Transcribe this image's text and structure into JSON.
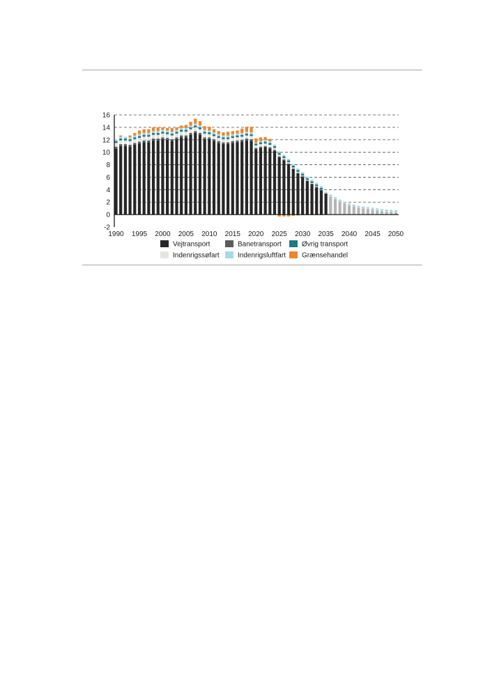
{
  "chart_data": {
    "type": "bar",
    "stacked": true,
    "title": "",
    "xlabel": "",
    "ylabel": "",
    "x": [
      1990,
      1991,
      1992,
      1993,
      1994,
      1995,
      1996,
      1997,
      1998,
      1999,
      2000,
      2001,
      2002,
      2003,
      2004,
      2005,
      2006,
      2007,
      2008,
      2009,
      2010,
      2011,
      2012,
      2013,
      2014,
      2015,
      2016,
      2017,
      2018,
      2019,
      2020,
      2021,
      2022,
      2023,
      2024,
      2025,
      2026,
      2027,
      2028,
      2029,
      2030,
      2031,
      2032,
      2033,
      2034,
      2035,
      2036,
      2037,
      2038,
      2039,
      2040,
      2041,
      2042,
      2043,
      2044,
      2045,
      2046,
      2047,
      2048,
      2049,
      2050
    ],
    "x_ticks": [
      "1990",
      "1995",
      "2000",
      "2005",
      "2010",
      "2015",
      "2020",
      "2025",
      "2030",
      "2035",
      "2040",
      "2045",
      "2050"
    ],
    "y_ticks": [
      "-2",
      "0",
      "2",
      "4",
      "6",
      "8",
      "10",
      "12",
      "14",
      "16"
    ],
    "ylim": [
      -2,
      16
    ],
    "grid": "horizontal-dashed",
    "legend_position": "bottom",
    "colors": {
      "vej": "#262626",
      "vej_projection": "#b5b5b5",
      "bane": "#5b5b5b",
      "ovrig": "#1f7a85",
      "sofart": "#e6e6e1",
      "luftfart": "#a9d8e2",
      "graense": "#f0852d"
    },
    "series": [
      {
        "key": "vej",
        "name": "Vejtransport",
        "values": [
          10.6,
          11.0,
          11.0,
          10.9,
          11.2,
          11.4,
          11.6,
          11.6,
          11.9,
          11.9,
          12.1,
          12.0,
          11.8,
          12.1,
          12.4,
          12.4,
          12.8,
          13.1,
          12.8,
          12.1,
          12.1,
          11.8,
          11.5,
          11.3,
          11.3,
          11.5,
          11.6,
          11.7,
          11.9,
          11.8,
          10.5,
          10.7,
          10.8,
          10.6,
          10.2,
          9.2,
          8.7,
          8.1,
          7.3,
          6.6,
          6.1,
          5.4,
          4.9,
          4.4,
          3.9,
          3.4,
          2.9,
          2.5,
          2.1,
          1.8,
          1.5,
          1.3,
          1.1,
          1.0,
          0.9,
          0.8,
          0.7,
          0.6,
          0.5,
          0.45,
          0.4
        ]
      },
      {
        "key": "bane",
        "name": "Banetransport",
        "values": [
          0.3,
          0.3,
          0.3,
          0.3,
          0.3,
          0.3,
          0.3,
          0.3,
          0.3,
          0.3,
          0.3,
          0.3,
          0.3,
          0.3,
          0.3,
          0.3,
          0.3,
          0.3,
          0.3,
          0.3,
          0.3,
          0.3,
          0.3,
          0.3,
          0.3,
          0.3,
          0.3,
          0.3,
          0.3,
          0.3,
          0.2,
          0.2,
          0.2,
          0.2,
          0.2,
          0.15,
          0.15,
          0.1,
          0.1,
          0.1,
          0.05,
          0.05,
          0.05,
          0.05,
          0.05,
          0,
          0,
          0,
          0,
          0,
          0,
          0,
          0,
          0,
          0,
          0,
          0,
          0,
          0,
          0,
          0
        ]
      },
      {
        "key": "sofart",
        "name": "Indenrigssøfart",
        "values": [
          0.6,
          0.6,
          0.6,
          0.6,
          0.6,
          0.6,
          0.6,
          0.6,
          0.6,
          0.6,
          0.6,
          0.6,
          0.6,
          0.6,
          0.6,
          0.6,
          0.6,
          0.6,
          0.6,
          0.6,
          0.5,
          0.5,
          0.5,
          0.5,
          0.5,
          0.5,
          0.5,
          0.5,
          0.5,
          0.5,
          0.4,
          0.4,
          0.4,
          0.4,
          0.3,
          0.25,
          0.2,
          0.2,
          0.15,
          0.15,
          0.1,
          0.1,
          0.1,
          0.1,
          0.05,
          0.05,
          0.05,
          0.05,
          0.05,
          0.05,
          0.05,
          0.05,
          0.05,
          0.05,
          0.05,
          0.05,
          0.05,
          0.05,
          0.05,
          0.05,
          0.05
        ]
      },
      {
        "key": "ovrig",
        "name": "Øvrig transport",
        "values": [
          0.3,
          0.3,
          0.3,
          0.3,
          0.3,
          0.3,
          0.3,
          0.3,
          0.3,
          0.3,
          0.3,
          0.3,
          0.3,
          0.3,
          0.3,
          0.3,
          0.3,
          0.3,
          0.3,
          0.3,
          0.3,
          0.3,
          0.3,
          0.3,
          0.3,
          0.3,
          0.3,
          0.3,
          0.3,
          0.3,
          0.3,
          0.3,
          0.3,
          0.3,
          0.3,
          0.3,
          0.3,
          0.3,
          0.3,
          0.3,
          0.3,
          0.3,
          0.3,
          0.3,
          0.3,
          0,
          0,
          0,
          0,
          0,
          0,
          0,
          0,
          0,
          0,
          0,
          0,
          0,
          0,
          0,
          0
        ]
      },
      {
        "key": "luftfart",
        "name": "Indenrigsluftfart",
        "values": [
          0.3,
          0.3,
          0.3,
          0.3,
          0.3,
          0.3,
          0.3,
          0.3,
          0.3,
          0.3,
          0.3,
          0.3,
          0.3,
          0.3,
          0.3,
          0.3,
          0.3,
          0.3,
          0.3,
          0.3,
          0.3,
          0.3,
          0.3,
          0.3,
          0.3,
          0.3,
          0.3,
          0.3,
          0.3,
          0.3,
          0.15,
          0.2,
          0.25,
          0.25,
          0.25,
          0.25,
          0.25,
          0.25,
          0.25,
          0.25,
          0.25,
          0.25,
          0.25,
          0.25,
          0.25,
          0.25,
          0.25,
          0.25,
          0.25,
          0.25,
          0.25,
          0.25,
          0.25,
          0.25,
          0.25,
          0.25,
          0.25,
          0.25,
          0.25,
          0.25,
          0.25
        ]
      },
      {
        "key": "graense",
        "name": "Grænsehandel",
        "values": [
          0,
          0.2,
          0,
          0.3,
          0.4,
          0.6,
          0.6,
          0.6,
          0.6,
          0.6,
          0.4,
          0.4,
          0.6,
          0.4,
          0.4,
          0.5,
          0.6,
          0.8,
          0.7,
          0.6,
          0.6,
          0.5,
          0.5,
          0.5,
          0.6,
          0.5,
          0.5,
          0.7,
          0.8,
          0.9,
          0.7,
          0.6,
          0.5,
          0.4,
          0.0,
          -0.3,
          -0.3,
          -0.3,
          -0.2,
          -0.15,
          -0.1,
          -0.1,
          -0.1,
          -0.1,
          -0.1,
          0,
          0,
          0,
          0,
          0,
          0,
          0,
          0,
          0,
          0,
          0,
          0,
          0,
          0,
          0,
          0
        ]
      }
    ],
    "legend": [
      {
        "key": "vej",
        "label": "Vejtransport"
      },
      {
        "key": "bane",
        "label": "Banetransport"
      },
      {
        "key": "ovrig",
        "label": "Øvrig transport"
      },
      {
        "key": "sofart",
        "label": "Indenrigssøfart"
      },
      {
        "key": "luftfart",
        "label": "Indenrigsluftfart"
      },
      {
        "key": "graense",
        "label": "Grænsehandel"
      }
    ]
  }
}
